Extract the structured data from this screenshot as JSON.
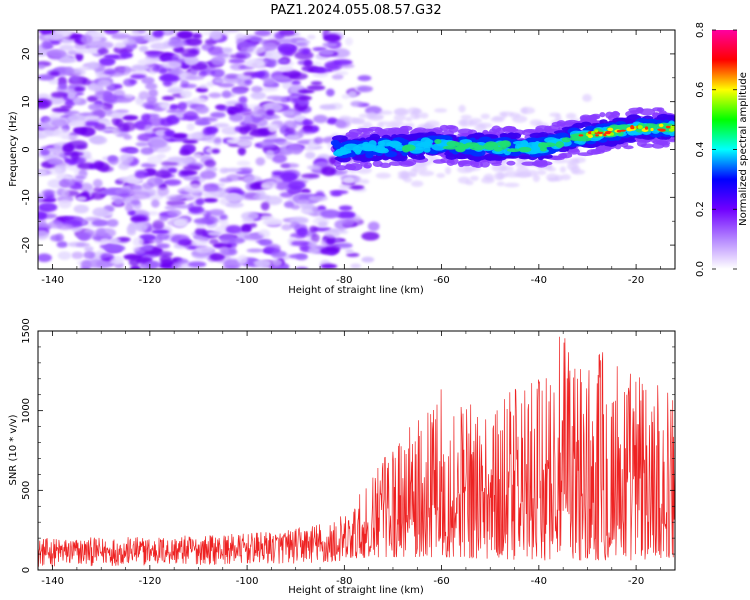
{
  "title": "PAZ1.2024.055.08.57.G32",
  "chart_data": [
    {
      "type": "heatmap",
      "name": "spectrogram",
      "xlabel": "Height of straight line (km)",
      "ylabel": "Frequency (Hz)",
      "xlim": [
        -143,
        -12
      ],
      "ylim": [
        -25,
        25
      ],
      "xticks": [
        -140,
        -120,
        -100,
        -80,
        -60,
        -40,
        -20
      ],
      "yticks": [
        -20,
        -10,
        0,
        10,
        20
      ],
      "colorbar": {
        "label": "Normalized spectral amplitude",
        "range": [
          0,
          0.8
        ],
        "ticks": [
          "0.0",
          "0.2",
          "0.4",
          "0.6",
          "0.8"
        ],
        "colors": [
          "#ffffff",
          "#b486ff",
          "#7000ff",
          "#0000ff",
          "#00ffff",
          "#00ff00",
          "#ffff00",
          "#ff0000",
          "#ff00a0"
        ]
      },
      "ridge": [
        {
          "x": -80,
          "y": 0.0
        },
        {
          "x": -70,
          "y": 0.5
        },
        {
          "x": -60,
          "y": 1.0
        },
        {
          "x": -50,
          "y": 0.5
        },
        {
          "x": -40,
          "y": 0.5
        },
        {
          "x": -30,
          "y": 3.0
        },
        {
          "x": -20,
          "y": 4.5
        },
        {
          "x": -12,
          "y": 4.5
        }
      ]
    },
    {
      "type": "line",
      "name": "snr",
      "xlabel": "Height of straight line (km)",
      "ylabel": "SNR (10 * v/v)",
      "xlim": [
        -143,
        -12
      ],
      "ylim": [
        0,
        1500
      ],
      "xticks": [
        -140,
        -120,
        -100,
        -80,
        -60,
        -40,
        -20
      ],
      "yticks": [
        0,
        500,
        1000,
        1500
      ],
      "line_color": "#ee2222",
      "envelope": [
        {
          "x": -143,
          "y": 200
        },
        {
          "x": -120,
          "y": 210
        },
        {
          "x": -100,
          "y": 230
        },
        {
          "x": -90,
          "y": 260
        },
        {
          "x": -85,
          "y": 300
        },
        {
          "x": -80,
          "y": 350
        },
        {
          "x": -75,
          "y": 550
        },
        {
          "x": -70,
          "y": 800
        },
        {
          "x": -65,
          "y": 950
        },
        {
          "x": -60,
          "y": 1150
        },
        {
          "x": -55,
          "y": 1050
        },
        {
          "x": -50,
          "y": 1000
        },
        {
          "x": -45,
          "y": 1150
        },
        {
          "x": -40,
          "y": 1200
        },
        {
          "x": -36,
          "y": 1500
        },
        {
          "x": -30,
          "y": 1300
        },
        {
          "x": -25,
          "y": 1450
        },
        {
          "x": -20,
          "y": 1250
        },
        {
          "x": -15,
          "y": 1200
        },
        {
          "x": -12,
          "y": 1100
        }
      ],
      "baseline": [
        {
          "x": -143,
          "y": 20
        },
        {
          "x": -85,
          "y": 40
        },
        {
          "x": -75,
          "y": 80
        },
        {
          "x": -60,
          "y": 80
        },
        {
          "x": -40,
          "y": 60
        },
        {
          "x": -20,
          "y": 60
        },
        {
          "x": -12,
          "y": 80
        }
      ]
    }
  ]
}
